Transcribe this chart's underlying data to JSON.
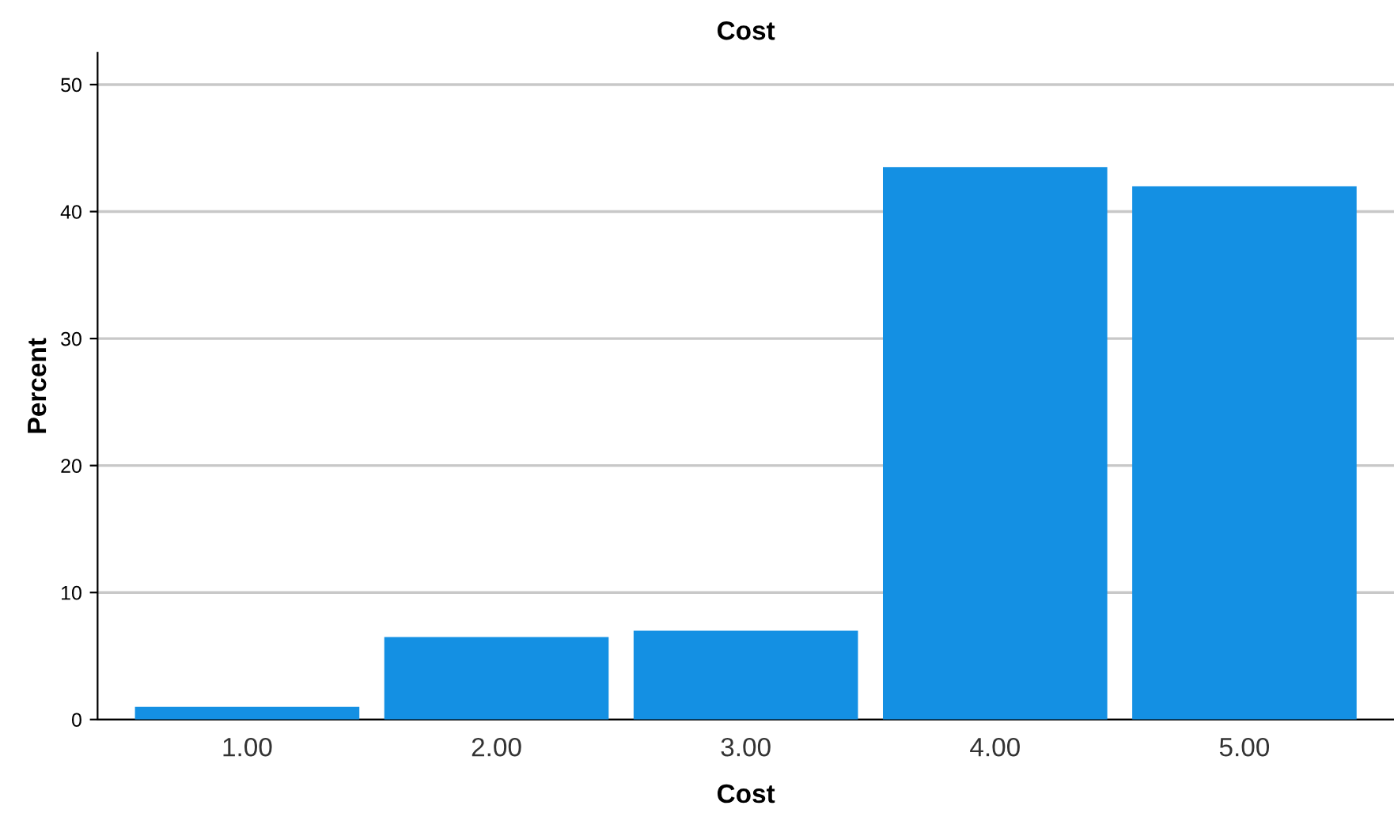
{
  "chart_data": {
    "type": "bar",
    "title": "Cost",
    "xlabel": "Cost",
    "ylabel": "Percent",
    "categories": [
      "1.00",
      "2.00",
      "3.00",
      "4.00",
      "5.00"
    ],
    "values": [
      1.0,
      6.5,
      7.0,
      43.5,
      42.0
    ],
    "color": "#1490e3",
    "ylim": [
      0,
      52.5
    ],
    "yticks": [
      0,
      10,
      20,
      30,
      40,
      50
    ],
    "grid": "y",
    "legend": false
  }
}
